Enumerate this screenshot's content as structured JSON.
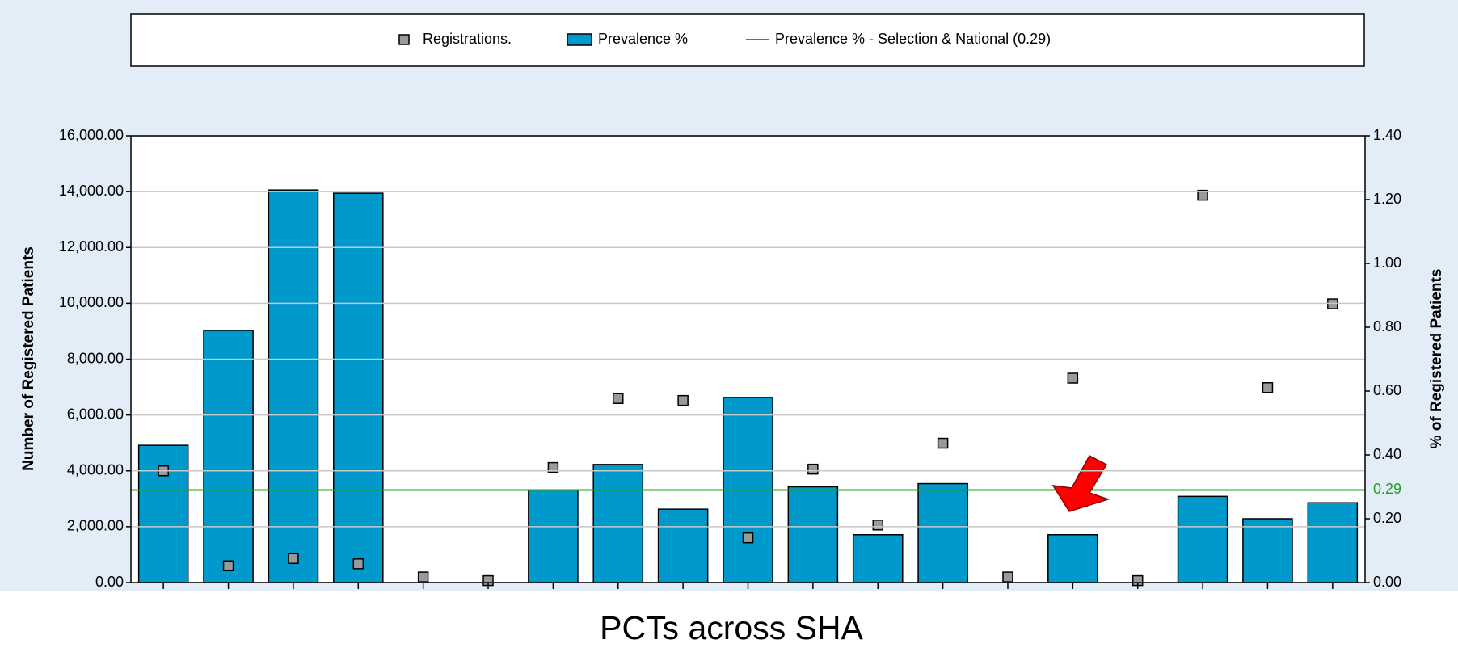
{
  "chart_data": {
    "type": "bar",
    "x_label": "PCTs across SHA",
    "y_label": "Number of Registered Patients",
    "y2_label": "% of Registered Patients",
    "categories": [
      null,
      null,
      null,
      null,
      null,
      null,
      null,
      null,
      null,
      null,
      null,
      null,
      null,
      null,
      null,
      null,
      null,
      null,
      null
    ],
    "series": [
      {
        "name": "Registrations.",
        "type": "scatter",
        "color": "#9a9a9a",
        "axis": "y",
        "values": [
          4000,
          600,
          860,
          670,
          200,
          70,
          4120,
          6590,
          6520,
          1600,
          4060,
          2060,
          4990,
          200,
          7320,
          70,
          13870,
          6980,
          9980
        ]
      },
      {
        "name": "Prevalence %",
        "type": "bar",
        "color": "#0099cc",
        "axis": "y2",
        "values": [
          0.43,
          0.79,
          1.23,
          1.22,
          0,
          0,
          0.29,
          0.37,
          0.23,
          0.58,
          0.3,
          0.15,
          0.31,
          0,
          0.15,
          0,
          0.27,
          0.2,
          0.25
        ]
      }
    ],
    "reference_line": {
      "name": "Prevalence % - Selection & National (0.29)",
      "value": 0.29,
      "label": "0.29",
      "color": "#22a022",
      "axis": "y2"
    },
    "ylim": [
      0,
      16000
    ],
    "yticks": [
      {
        "value": 0,
        "label": "0.00"
      },
      {
        "value": 2000,
        "label": "2,000.00"
      },
      {
        "value": 4000,
        "label": "4,000.00"
      },
      {
        "value": 6000,
        "label": "6,000.00"
      },
      {
        "value": 8000,
        "label": "8,000.00"
      },
      {
        "value": 10000,
        "label": "10,000.00"
      },
      {
        "value": 12000,
        "label": "12,000.00"
      },
      {
        "value": 14000,
        "label": "14,000.00"
      },
      {
        "value": 16000,
        "label": "16,000.00"
      }
    ],
    "y2lim": [
      0,
      1.4
    ],
    "y2ticks": [
      {
        "value": 0,
        "label": "0.00"
      },
      {
        "value": 0.2,
        "label": "0.20"
      },
      {
        "value": 0.4,
        "label": "0.40"
      },
      {
        "value": 0.6,
        "label": "0.60"
      },
      {
        "value": 0.8,
        "label": "0.80"
      },
      {
        "value": 1.0,
        "label": "1.00"
      },
      {
        "value": 1.2,
        "label": "1.20"
      },
      {
        "value": 1.4,
        "label": "1.40"
      }
    ],
    "grid": true,
    "legend": "top"
  }
}
